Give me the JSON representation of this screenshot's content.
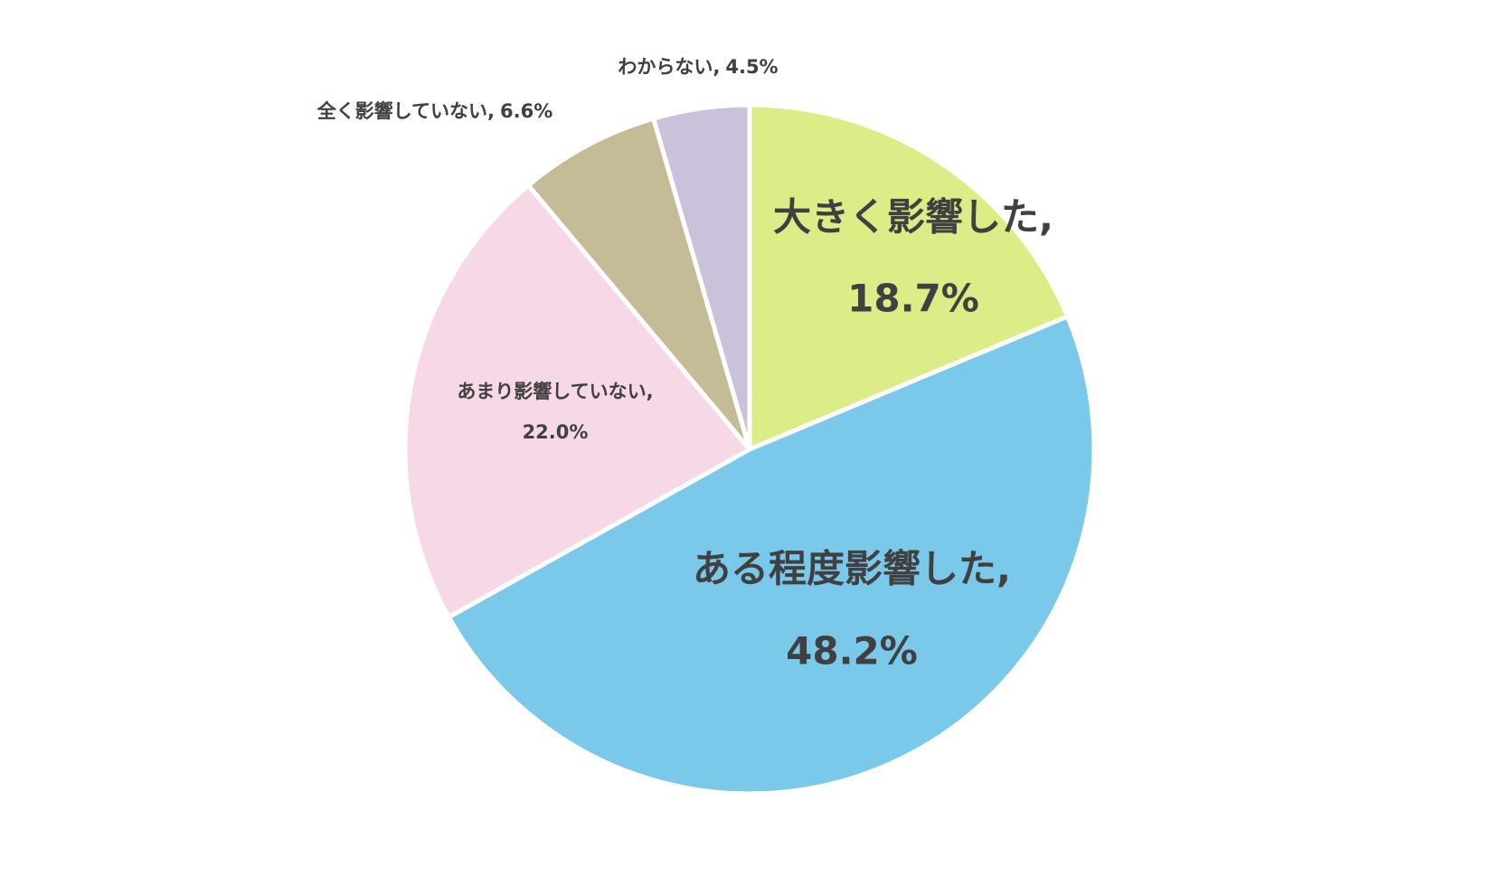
{
  "chart_data": {
    "type": "pie",
    "categories": [
      "大きく影響した,",
      "ある程度影響した,",
      "あまり影響していない,",
      "全く影響していない,",
      "わからない,"
    ],
    "values": [
      18.7,
      48.2,
      22.0,
      6.6,
      4.5
    ],
    "value_labels": [
      "18.7%",
      "48.2%",
      "22.0%",
      "6.6%",
      "4.5%"
    ],
    "colors": [
      "#dced88",
      "#7ac9ea",
      "#f7d8e7",
      "#c4bc96",
      "#cbc1db"
    ]
  }
}
